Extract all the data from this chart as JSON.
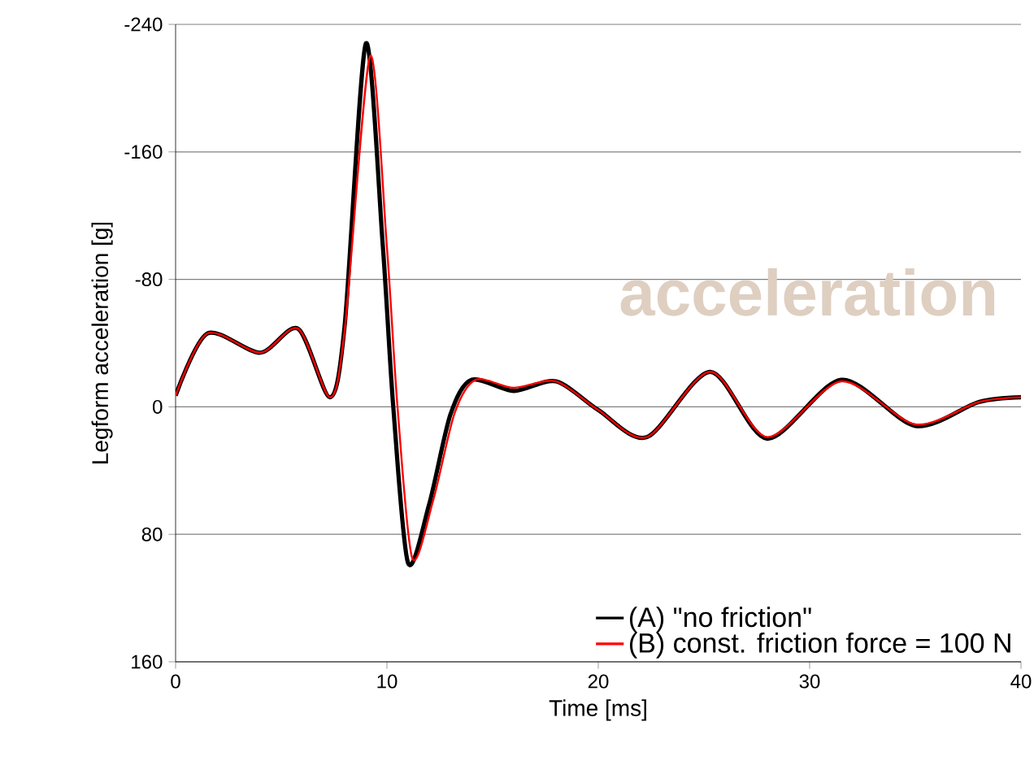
{
  "chart_data": {
    "type": "line",
    "xlabel": "Time [ms]",
    "ylabel": "Legform acceleration [g]",
    "annotations": [
      "acceleration"
    ],
    "xlim": [
      0,
      40
    ],
    "xticks": [
      0,
      10,
      20,
      30,
      40
    ],
    "ylim": [
      160,
      -240
    ],
    "yticks": [
      -240,
      -160,
      -80,
      0,
      80,
      160
    ],
    "grid": "y",
    "legend": "bottom right",
    "line_style": "solid",
    "marker": "none",
    "series": [
      {
        "name": "(A) \"no friction\"",
        "color": "#000000",
        "x": [
          0,
          1.5,
          4,
          5.8,
          7.3,
          8,
          9,
          9.8,
          10.3,
          11,
          12,
          13,
          14,
          16,
          18,
          20,
          22.3,
          25.3,
          28,
          31.5,
          35,
          38,
          40
        ],
        "values": [
          -7,
          -46,
          -34,
          -49,
          -6,
          -51,
          -228,
          -102,
          0,
          98,
          61,
          5,
          -17,
          -10,
          -16,
          2,
          19,
          -22,
          20,
          -17,
          12,
          -3,
          -6
        ]
      },
      {
        "name": "(B) const. friction force = 100 N",
        "color": "#ff0000",
        "x": [
          0,
          1.5,
          4,
          5.8,
          7.3,
          8,
          9.2,
          10,
          10.5,
          11.2,
          12.2,
          13.2,
          14.2,
          16,
          18,
          20,
          22.3,
          25.3,
          28,
          31.5,
          35,
          38,
          40
        ],
        "values": [
          -7,
          -46,
          -34,
          -49,
          -6,
          -48,
          -220,
          -100,
          0,
          95,
          58,
          4,
          -17,
          -12,
          -16,
          2,
          19,
          -22,
          19,
          -16,
          11,
          -3,
          -6
        ]
      }
    ]
  }
}
